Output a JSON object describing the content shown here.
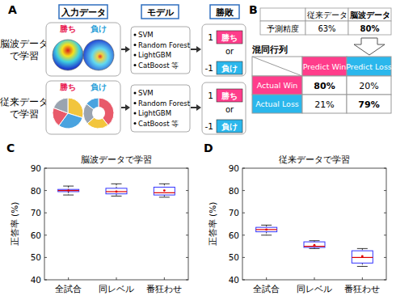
{
  "panel_a": {
    "label": "A",
    "headers": [
      "入力データ",
      "モデル",
      "勝敗"
    ],
    "rows": [
      {
        "name": [
          "脳波データ",
          "で学習"
        ],
        "win": "勝ち",
        "loss": "負け",
        "models": [
          "SVM",
          "Random Forest",
          "LightGBM",
          "CatBoost 等"
        ],
        "outcomes": [
          {
            "value": 1,
            "label": "勝ち"
          },
          {
            "value": -1,
            "label": "負け"
          }
        ],
        "or": "or"
      },
      {
        "name": [
          "従来データ",
          "で学習"
        ],
        "win": "勝ち",
        "loss": "負け",
        "models": [
          "SVM",
          "Random Forest",
          "LightGBM",
          "CatBoost 等"
        ],
        "outcomes": [
          {
            "value": 1,
            "label": "勝ち"
          },
          {
            "value": -1,
            "label": "負け"
          }
        ],
        "or": "or"
      }
    ]
  },
  "panel_b": {
    "label": "B",
    "table": {
      "columns": [
        "従来データ",
        "脳波データ"
      ],
      "row_label": "予測精度",
      "cells": [
        "63%",
        "80%"
      ]
    },
    "matrix": {
      "title": "混同行列",
      "columns": [
        "Predict Win",
        "Predict Loss"
      ],
      "rows": [
        {
          "label": "Actual Win",
          "cells": [
            "80%",
            "20%"
          ]
        },
        {
          "label": "Actual Loss",
          "cells": [
            "21%",
            "79%"
          ]
        }
      ]
    }
  },
  "panel_labels": [
    "C",
    "D"
  ],
  "chart_data": [
    {
      "type": "box",
      "title": "脳波データで学習",
      "y_label": "正答率 (%)",
      "categories": [
        "全試合",
        "同レベル",
        "番狂わせ"
      ],
      "boxes": [
        {
          "min": 78,
          "q1": 79.5,
          "median": 80,
          "q3": 80.5,
          "max": 82,
          "mean": 80
        },
        {
          "min": 77.5,
          "q1": 78.5,
          "median": 79.5,
          "q3": 81,
          "max": 83,
          "mean": 79.5
        },
        {
          "min": 77,
          "q1": 78,
          "median": 79,
          "q3": 81.5,
          "max": 83,
          "mean": 80
        }
      ],
      "color": "#3333ff",
      "ylim": [
        40,
        90
      ],
      "yticks": [
        40,
        50,
        60,
        70,
        80,
        90
      ]
    },
    {
      "type": "box",
      "title": "従来データで学習",
      "y_label": "正答率 (%)",
      "categories": [
        "全試合",
        "同レベル",
        "番狂わせ"
      ],
      "boxes": [
        {
          "min": 60,
          "q1": 61.5,
          "median": 62.5,
          "q3": 63.5,
          "max": 64.5,
          "mean": 62.5
        },
        {
          "min": 54,
          "q1": 54.5,
          "median": 55,
          "q3": 57,
          "max": 57.5,
          "mean": 55.5
        },
        {
          "min": 46,
          "q1": 47.5,
          "median": 50,
          "q3": 53,
          "max": 54,
          "mean": 50.5
        }
      ],
      "color": "#3333ff",
      "ylim": [
        40,
        90
      ],
      "yticks": [
        40,
        50,
        60,
        70,
        80,
        90
      ]
    }
  ]
}
